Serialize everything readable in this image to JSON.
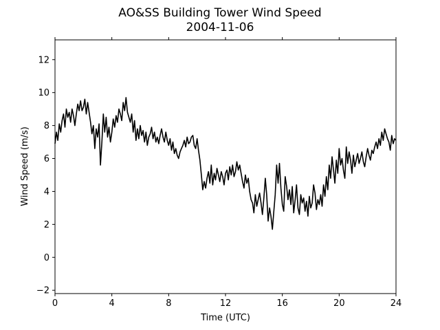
{
  "chart_data": {
    "type": "line",
    "title": "AO&SS Building Tower Wind Speed",
    "subtitle": "2004-11-06",
    "xlabel": "Time (UTC)",
    "ylabel": "Wind Speed (m/s)",
    "xlim": [
      0,
      24
    ],
    "ylim": [
      -2.2,
      13.2
    ],
    "xticks": [
      0,
      4,
      8,
      12,
      16,
      20,
      24
    ],
    "yticks": [
      -2,
      0,
      2,
      4,
      6,
      8,
      10,
      12
    ],
    "grid": false,
    "line_color": "#000000",
    "series": [
      {
        "x": [
          0.0,
          0.1,
          0.2,
          0.3,
          0.4,
          0.5,
          0.6,
          0.7,
          0.8,
          0.9,
          1.0,
          1.1,
          1.2,
          1.3,
          1.4,
          1.5,
          1.6,
          1.7,
          1.8,
          1.9,
          2.0,
          2.1,
          2.2,
          2.3,
          2.4,
          2.5,
          2.6,
          2.7,
          2.8,
          2.9,
          3.0,
          3.1,
          3.2,
          3.3,
          3.4,
          3.5,
          3.6,
          3.7,
          3.8,
          3.9,
          4.0,
          4.1,
          4.2,
          4.3,
          4.4,
          4.5,
          4.6,
          4.7,
          4.8,
          4.9,
          5.0,
          5.1,
          5.2,
          5.3,
          5.4,
          5.5,
          5.6,
          5.7,
          5.8,
          5.9,
          6.0,
          6.1,
          6.2,
          6.3,
          6.4,
          6.5,
          6.6,
          6.7,
          6.8,
          6.9,
          7.0,
          7.1,
          7.2,
          7.3,
          7.4,
          7.5,
          7.6,
          7.7,
          7.8,
          7.9,
          8.0,
          8.1,
          8.2,
          8.3,
          8.4,
          8.5,
          8.6,
          8.7,
          8.8,
          8.9,
          9.0,
          9.1,
          9.2,
          9.3,
          9.4,
          9.5,
          9.6,
          9.7,
          9.8,
          9.9,
          10.0,
          10.1,
          10.2,
          10.3,
          10.4,
          10.5,
          10.6,
          10.7,
          10.8,
          10.9,
          11.0,
          11.1,
          11.2,
          11.3,
          11.4,
          11.5,
          11.6,
          11.7,
          11.8,
          11.9,
          12.0,
          12.1,
          12.2,
          12.3,
          12.4,
          12.5,
          12.6,
          12.7,
          12.8,
          12.9,
          13.0,
          13.1,
          13.2,
          13.3,
          13.4,
          13.5,
          13.6,
          13.7,
          13.8,
          13.9,
          14.0,
          14.1,
          14.2,
          14.3,
          14.4,
          14.5,
          14.6,
          14.7,
          14.8,
          14.9,
          15.0,
          15.1,
          15.2,
          15.3,
          15.4,
          15.5,
          15.6,
          15.7,
          15.8,
          15.9,
          16.0,
          16.1,
          16.2,
          16.3,
          16.4,
          16.5,
          16.6,
          16.7,
          16.8,
          16.9,
          17.0,
          17.1,
          17.2,
          17.3,
          17.4,
          17.5,
          17.6,
          17.7,
          17.8,
          17.9,
          18.0,
          18.1,
          18.2,
          18.3,
          18.4,
          18.5,
          18.6,
          18.7,
          18.8,
          18.9,
          19.0,
          19.1,
          19.2,
          19.3,
          19.4,
          19.5,
          19.6,
          19.7,
          19.8,
          19.9,
          20.0,
          20.1,
          20.2,
          20.3,
          20.4,
          20.5,
          20.6,
          20.7,
          20.8,
          20.9,
          21.0,
          21.1,
          21.2,
          21.3,
          21.4,
          21.5,
          21.6,
          21.7,
          21.8,
          21.9,
          22.0,
          22.1,
          22.2,
          22.3,
          22.4,
          22.5,
          22.6,
          22.7,
          22.8,
          22.9,
          23.0,
          23.1,
          23.2,
          23.3,
          23.4,
          23.5,
          23.6,
          23.7,
          23.8,
          23.9,
          24.0
        ],
        "y": [
          6.9,
          7.6,
          7.1,
          8.1,
          7.6,
          8.3,
          8.7,
          7.9,
          9.0,
          8.5,
          8.8,
          8.2,
          9.0,
          8.6,
          8.0,
          8.7,
          9.3,
          8.9,
          9.5,
          8.9,
          9.1,
          9.6,
          8.7,
          9.4,
          8.8,
          8.2,
          7.5,
          8.0,
          6.6,
          7.8,
          7.3,
          8.1,
          5.6,
          7.0,
          8.7,
          7.6,
          8.5,
          7.3,
          7.9,
          7.0,
          7.6,
          8.4,
          7.9,
          8.6,
          8.2,
          9.0,
          8.7,
          8.3,
          9.4,
          8.9,
          9.7,
          8.8,
          8.5,
          8.2,
          8.7,
          7.6,
          8.3,
          7.1,
          7.8,
          7.2,
          8.0,
          7.4,
          7.7,
          7.0,
          7.6,
          6.8,
          7.3,
          7.5,
          7.9,
          7.2,
          7.6,
          7.0,
          7.3,
          6.9,
          7.4,
          7.8,
          7.3,
          7.0,
          7.6,
          7.1,
          6.8,
          7.2,
          6.5,
          7.0,
          6.3,
          6.6,
          6.2,
          6.0,
          6.4,
          6.6,
          6.8,
          7.1,
          6.7,
          7.3,
          6.9,
          7.0,
          7.3,
          7.4,
          6.8,
          6.6,
          7.2,
          6.5,
          5.9,
          5.0,
          4.1,
          4.6,
          4.2,
          4.8,
          5.2,
          4.5,
          5.6,
          4.4,
          5.1,
          4.7,
          5.4,
          5.0,
          4.6,
          5.2,
          4.9,
          4.4,
          5.1,
          5.3,
          4.7,
          5.5,
          5.0,
          5.6,
          4.9,
          5.2,
          5.8,
          5.3,
          5.6,
          5.1,
          4.6,
          4.2,
          5.0,
          4.5,
          4.8,
          4.0,
          3.5,
          3.3,
          2.7,
          3.8,
          3.1,
          3.5,
          3.9,
          3.3,
          2.6,
          3.6,
          4.8,
          3.8,
          2.2,
          3.0,
          2.5,
          1.7,
          2.8,
          3.8,
          5.6,
          4.5,
          5.7,
          4.2,
          3.2,
          2.8,
          4.9,
          4.3,
          3.5,
          4.1,
          3.2,
          4.3,
          2.7,
          3.5,
          4.4,
          3.0,
          2.6,
          3.8,
          3.3,
          3.6,
          2.8,
          3.4,
          2.5,
          3.7,
          3.0,
          3.3,
          4.4,
          3.9,
          2.9,
          3.5,
          3.2,
          3.8,
          3.1,
          4.4,
          3.7,
          4.9,
          4.1,
          5.6,
          4.8,
          6.1,
          5.3,
          4.5,
          5.9,
          5.1,
          6.6,
          5.6,
          6.0,
          5.3,
          4.8,
          6.7,
          5.7,
          6.4,
          5.9,
          5.1,
          6.2,
          5.5,
          5.9,
          6.3,
          5.7,
          6.0,
          6.4,
          5.8,
          5.5,
          6.1,
          6.6,
          6.2,
          5.9,
          6.5,
          6.3,
          6.7,
          7.0,
          6.6,
          7.2,
          6.8,
          7.6,
          7.1,
          7.8,
          7.5,
          7.2,
          7.0,
          6.5,
          7.4,
          6.9,
          7.2,
          7.1
        ]
      }
    ]
  }
}
